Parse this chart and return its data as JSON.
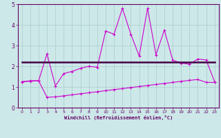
{
  "x": [
    0,
    1,
    2,
    3,
    4,
    5,
    6,
    7,
    8,
    9,
    10,
    11,
    12,
    13,
    14,
    15,
    16,
    17,
    18,
    19,
    20,
    21,
    22,
    23
  ],
  "zigzag": [
    1.25,
    1.3,
    1.3,
    2.6,
    1.05,
    1.65,
    1.75,
    1.9,
    2.0,
    1.95,
    3.7,
    3.55,
    4.8,
    3.55,
    2.5,
    4.8,
    2.55,
    3.75,
    2.3,
    2.15,
    2.1,
    2.35,
    2.3,
    1.25
  ],
  "flat_line_x": [
    0,
    23
  ],
  "flat_line_y": [
    2.2,
    2.2
  ],
  "rising": [
    1.25,
    1.28,
    1.3,
    0.5,
    0.52,
    0.57,
    0.62,
    0.67,
    0.72,
    0.77,
    0.82,
    0.87,
    0.92,
    0.97,
    1.02,
    1.07,
    1.12,
    1.17,
    1.22,
    1.27,
    1.32,
    1.36,
    1.22,
    1.22
  ],
  "line_color_zigzag": "#cc00cc",
  "line_color_flat": "#440044",
  "line_color_rising": "#cc00cc",
  "bg_color": "#cce8e8",
  "grid_color": "#aacccc",
  "tick_color": "#660066",
  "spine_color": "#660066",
  "xlabel": "Windchill (Refroidissement éolien,°C)",
  "xlim": [
    -0.5,
    23.5
  ],
  "ylim": [
    0,
    5
  ],
  "yticks": [
    0,
    1,
    2,
    3,
    4,
    5
  ],
  "xticks": [
    0,
    1,
    2,
    3,
    4,
    5,
    6,
    7,
    8,
    9,
    10,
    11,
    12,
    13,
    14,
    15,
    16,
    17,
    18,
    19,
    20,
    21,
    22,
    23
  ]
}
